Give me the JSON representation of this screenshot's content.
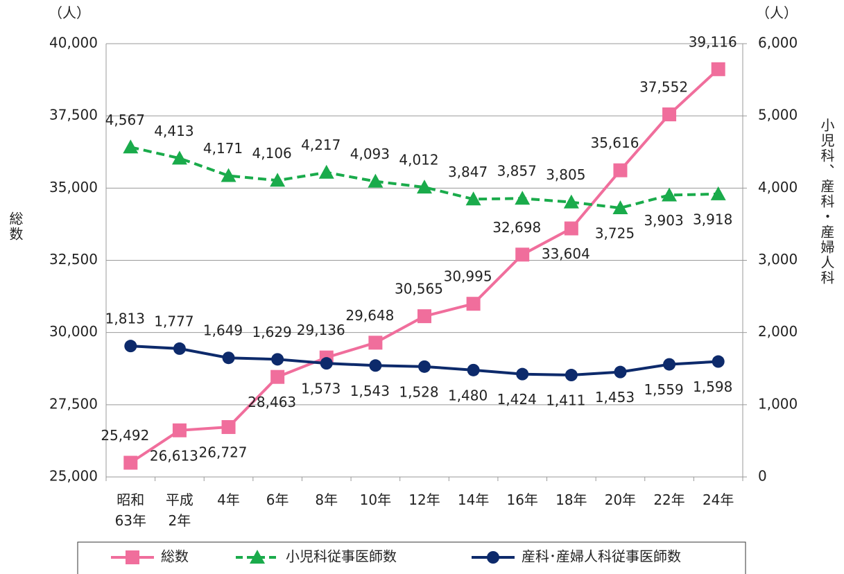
{
  "chart_data": {
    "type": "line",
    "y_unit_label": "（人）",
    "y2_unit_label": "（人）",
    "ylabel": "総数",
    "y2label": "小児科、産科・産婦人科",
    "categories": [
      "昭和\n63年",
      "平成\n2年",
      "4年",
      "6年",
      "8年",
      "10年",
      "12年",
      "14年",
      "16年",
      "18年",
      "20年",
      "22年",
      "24年"
    ],
    "ylim": [
      25000,
      40000
    ],
    "yticks": [
      {
        "value": 25000,
        "label": "25,000"
      },
      {
        "value": 27500,
        "label": "27,500"
      },
      {
        "value": 30000,
        "label": "30,000"
      },
      {
        "value": 32500,
        "label": "32,500"
      },
      {
        "value": 35000,
        "label": "35,000"
      },
      {
        "value": 37500,
        "label": "37,500"
      },
      {
        "value": 40000,
        "label": "40,000"
      }
    ],
    "y2lim": [
      0,
      6000
    ],
    "y2ticks": [
      0,
      {
        "value": 1000,
        "label": "1,000"
      },
      {
        "value": 2000,
        "label": "2,000"
      },
      {
        "value": 3000,
        "label": "3,000"
      },
      {
        "value": 4000,
        "label": "4,000"
      },
      {
        "value": 5000,
        "label": "5,000"
      },
      {
        "value": 6000,
        "label": "6,000"
      }
    ],
    "grid": true,
    "series": [
      {
        "name": "総数",
        "color": "#f06e9c",
        "marker": "square",
        "dash": false,
        "values": [
          25492,
          26613,
          26727,
          28463,
          29136,
          29648,
          30565,
          30995,
          32698,
          33604,
          35616,
          37552,
          39116
        ],
        "value_labels": [
          "25,492",
          "26,613",
          "26,727",
          "28,463",
          "29,136",
          "29,648",
          "30,565",
          "30,995",
          "32,698",
          "33,604",
          "35,616",
          "37,552",
          "39,116"
        ]
      },
      {
        "name": "小児科従事医師数",
        "color": "#1aab4b",
        "marker": "triangle",
        "dash": true,
        "axis": "y2",
        "values": [
          4567,
          4413,
          4171,
          4106,
          4217,
          4093,
          4012,
          3847,
          3857,
          3805,
          3725,
          3903,
          3918
        ],
        "value_labels": [
          "4,567",
          "4,413",
          "4,171",
          "4,106",
          "4,217",
          "4,093",
          "4,012",
          "3,847",
          "3,857",
          "3,805",
          "3,725",
          "3,903",
          "3,918"
        ]
      },
      {
        "name": "産科･産婦人科従事医師数",
        "color": "#0d2a6b",
        "marker": "circle",
        "dash": false,
        "axis": "y2",
        "values": [
          1813,
          1777,
          1649,
          1629,
          1573,
          1543,
          1528,
          1480,
          1424,
          1411,
          1453,
          1559,
          1598
        ],
        "value_labels": [
          "1,813",
          "1,777",
          "1,649",
          "1,629",
          "1,573",
          "1,543",
          "1,528",
          "1,480",
          "1,424",
          "1,411",
          "1,453",
          "1,559",
          "1,598"
        ]
      }
    ]
  }
}
